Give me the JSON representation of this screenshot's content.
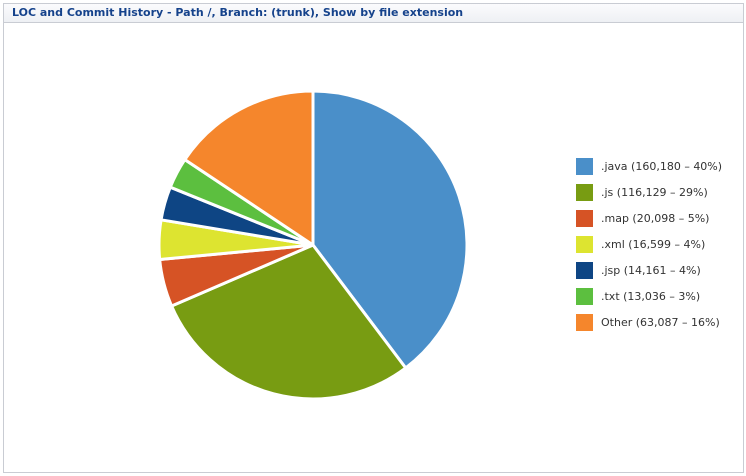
{
  "title": "LOC and Commit History - Path /, Branch: (trunk), Show by file extension",
  "chart_data": {
    "type": "pie",
    "slices": [
      {
        "label": ".java (160,180 – 40%)",
        "value": 160180,
        "color": "#4a8fc9"
      },
      {
        "label": ".js (116,129 – 29%)",
        "value": 116129,
        "color": "#789c12"
      },
      {
        "label": ".map (20,098 – 5%)",
        "value": 20098,
        "color": "#d65325"
      },
      {
        "label": ".xml (16,599 – 4%)",
        "value": 16599,
        "color": "#dde430"
      },
      {
        "label": ".jsp (14,161 – 4%)",
        "value": 14161,
        "color": "#0e4584"
      },
      {
        "label": ".txt (13,036 – 3%)",
        "value": 13036,
        "color": "#5cbf3f"
      },
      {
        "label": "Other (63,087 – 16%)",
        "value": 63087,
        "color": "#f5862c"
      }
    ],
    "legend_position": "right"
  }
}
